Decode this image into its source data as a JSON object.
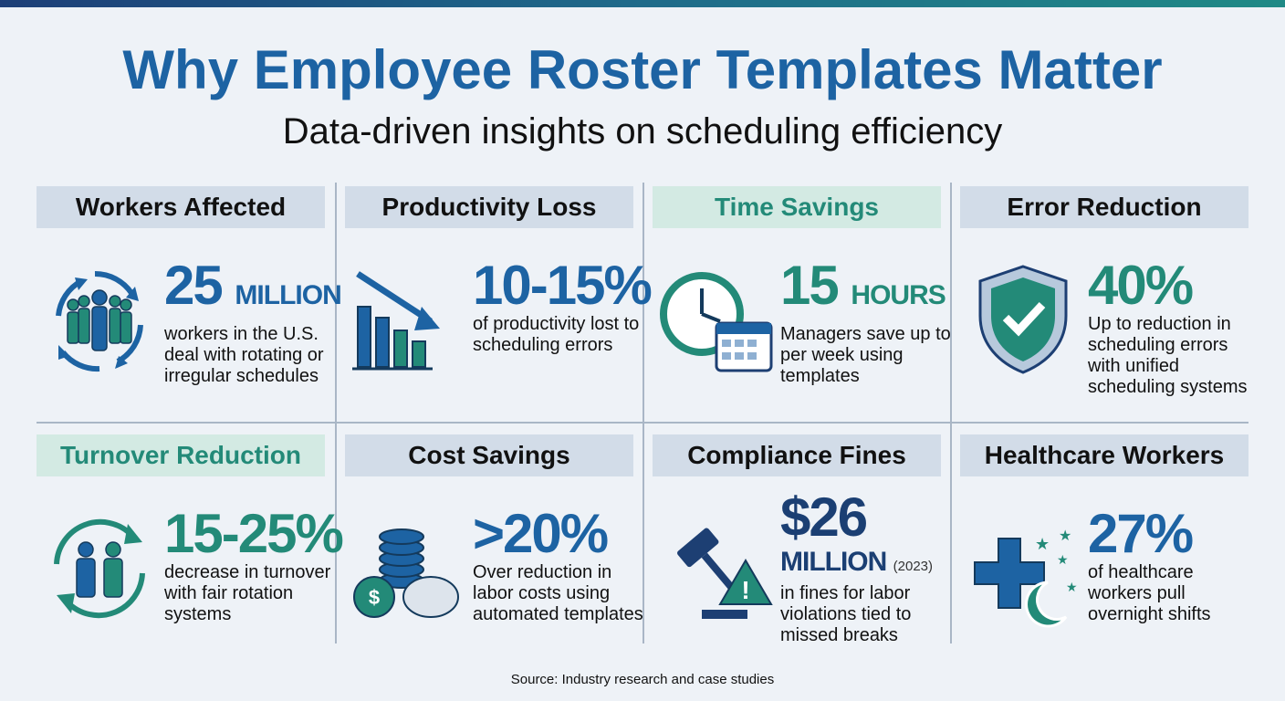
{
  "title": "Why Employee Roster Templates Matter",
  "subtitle": "Data-driven insights on scheduling efficiency",
  "colors": {
    "blue": "#1d63a3",
    "navy": "#1b3f73",
    "teal": "#238a78",
    "header_blue": "#d2dce8",
    "header_teal": "#d3eae3"
  },
  "cards": [
    {
      "header": "Workers Affected",
      "stat": "25",
      "unit": "MILLION",
      "desc": "workers in the U.S. deal with rotating or irregular schedules",
      "icon": "rotating-workers-icon"
    },
    {
      "header": "Productivity Loss",
      "stat": "10-15%",
      "desc": "of productivity lost to scheduling errors",
      "icon": "declining-bar-chart-icon"
    },
    {
      "header": "Time Savings",
      "stat": "15",
      "unit": "HOURS",
      "desc": "Managers save up to per week using templates",
      "icon": "clock-calendar-icon"
    },
    {
      "header": "Error Reduction",
      "stat": "40%",
      "desc": "Up to reduction in scheduling errors with unified scheduling systems",
      "icon": "shield-check-icon"
    },
    {
      "header": "Turnover Reduction",
      "stat": "15-25%",
      "desc": "decrease in turnover with fair rotation systems",
      "icon": "rotation-people-icon"
    },
    {
      "header": "Cost Savings",
      "stat": ">20%",
      "desc": "Over reduction in labor costs using automated templates",
      "icon": "coins-piggy-bank-icon"
    },
    {
      "header": "Compliance Fines",
      "stat": "$26",
      "unit": "MILLION",
      "year": "(2023)",
      "desc": "in fines for labor violations tied to missed breaks",
      "icon": "gavel-warning-icon"
    },
    {
      "header": "Healthcare Workers",
      "stat": "27%",
      "desc": "of healthcare workers pull overnight shifts",
      "icon": "medical-cross-moon-icon"
    }
  ],
  "source": "Source: Industry research and case studies"
}
